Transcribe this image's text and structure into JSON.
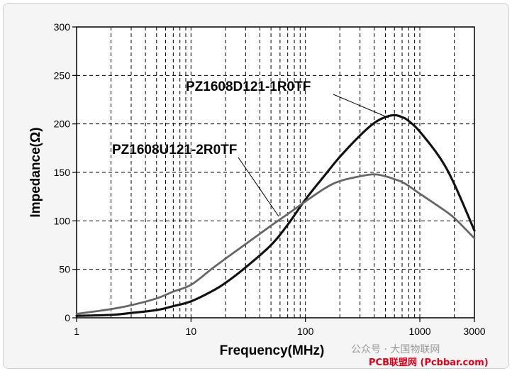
{
  "chart_data": {
    "type": "line",
    "title": "",
    "xlabel": "Frequency(MHz)",
    "ylabel": "Impedance(Ω)",
    "x_scale": "log",
    "xlim": [
      1,
      3000
    ],
    "ylim": [
      0,
      300
    ],
    "grid": true,
    "x_ticks": [
      {
        "value": 1,
        "label": "1"
      },
      {
        "value": 10,
        "label": "10"
      },
      {
        "value": 100,
        "label": "100"
      },
      {
        "value": 1000,
        "label": "1000"
      },
      {
        "value": 3000,
        "label": "3000"
      }
    ],
    "y_ticks": [
      {
        "value": 0,
        "label": "0"
      },
      {
        "value": 50,
        "label": "50"
      },
      {
        "value": 100,
        "label": "100"
      },
      {
        "value": 150,
        "label": "150"
      },
      {
        "value": 200,
        "label": "200"
      },
      {
        "value": 250,
        "label": "250"
      },
      {
        "value": 300,
        "label": "300"
      }
    ],
    "series": [
      {
        "name": "PZ1608D121-1R0TF",
        "color": "#111111",
        "x": [
          1,
          2,
          3,
          5,
          7,
          10,
          15,
          20,
          30,
          50,
          70,
          100,
          150,
          200,
          300,
          400,
          500,
          600,
          700,
          800,
          1000,
          1500,
          2000,
          3000
        ],
        "y": [
          2,
          3,
          5,
          8,
          12,
          17,
          27,
          36,
          52,
          75,
          96,
          122,
          148,
          166,
          188,
          201,
          207,
          209,
          207,
          203,
          192,
          165,
          138,
          90
        ]
      },
      {
        "name": "PZ1608U121-2R0TF",
        "color": "#666666",
        "x": [
          1,
          2,
          3,
          5,
          7,
          10,
          15,
          20,
          30,
          50,
          70,
          100,
          150,
          200,
          300,
          400,
          500,
          600,
          700,
          800,
          1000,
          1500,
          2000,
          3000
        ],
        "y": [
          4,
          9,
          13,
          20,
          27,
          34,
          50,
          61,
          76,
          95,
          107,
          120,
          134,
          141,
          146,
          148,
          146,
          143,
          140,
          136,
          128,
          114,
          103,
          82
        ]
      }
    ]
  },
  "watermark_text": "公众号 · 大国物联网",
  "site_credit": "PCB联盟网 (Pcbbar.com)"
}
